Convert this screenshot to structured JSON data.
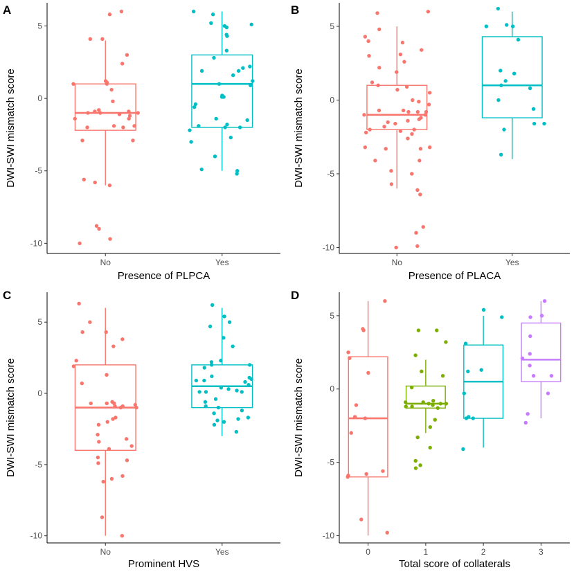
{
  "chart_data": [
    {
      "type": "boxplot",
      "panel": "A",
      "xlabel": "Presence of PLPCA",
      "ylabel": "DWI-SWI mismatch score",
      "ylim": [
        -10.7,
        6.6
      ],
      "yticks": [
        -10,
        -5,
        0,
        5
      ],
      "ytick_labels": [
        "-10",
        "-5",
        "0",
        "5"
      ],
      "groups": [
        {
          "label": "No",
          "color": "#F8766D",
          "box": {
            "whisker_low": -6,
            "q1": -2.2,
            "median": -1,
            "q3": 1,
            "whisker_high": 4
          },
          "points": [
            6,
            5.8,
            4.1,
            4.1,
            3,
            2.4,
            1.2,
            1.1,
            1,
            1,
            0.6,
            -0.2,
            -0.8,
            -0.9,
            -0.9,
            -1,
            -1,
            -1,
            -1.1,
            -1.2,
            -1.4,
            -1.4,
            -1.9,
            -1.9,
            -2,
            -2,
            -2.9,
            -2.9,
            -5.6,
            -5.8,
            -6,
            -8.8,
            -9,
            -9.7,
            -10
          ]
        },
        {
          "label": "Yes",
          "color": "#00BFC4",
          "box": {
            "whisker_low": -5,
            "q1": -2,
            "median": 1,
            "q3": 3,
            "whisker_high": 6
          },
          "points": [
            6,
            5.8,
            5.2,
            5.1,
            5,
            4.9,
            4.4,
            4.3,
            3.3,
            2.8,
            2.2,
            2.1,
            1.9,
            1.9,
            1.6,
            1.2,
            1,
            0.9,
            0.2,
            0.1,
            0.1,
            -0.4,
            -0.6,
            -1.4,
            -1.5,
            -1.8,
            -1.9,
            -2,
            -2,
            -2.2,
            -2.7,
            -3,
            -4,
            -4.9,
            -5,
            -5.2
          ]
        }
      ]
    },
    {
      "type": "boxplot",
      "panel": "B",
      "xlabel": "Presence of PLACA",
      "ylabel": "DWI-SWI mismatch score",
      "ylim": [
        -10.4,
        6.6
      ],
      "yticks": [
        -10,
        -5,
        0,
        5
      ],
      "ytick_labels": [
        "-10",
        "-5",
        "0",
        "5"
      ],
      "groups": [
        {
          "label": "No",
          "color": "#F8766D",
          "box": {
            "whisker_low": -6,
            "q1": -2,
            "median": -1,
            "q3": 1,
            "whisker_high": 5
          },
          "points": [
            6,
            5.9,
            4.8,
            4.3,
            4,
            3.9,
            3.4,
            3.1,
            3,
            2.6,
            2.2,
            1.9,
            1.2,
            1,
            0.9,
            0.7,
            0.5,
            0,
            -0.1,
            -0.3,
            -0.7,
            -0.7,
            -0.8,
            -0.8,
            -0.8,
            -1,
            -1,
            -1.2,
            -1.3,
            -1.4,
            -1.5,
            -1.6,
            -1.8,
            -2,
            -2,
            -2.1,
            -2.2,
            -2.3,
            -2.6,
            -3.2,
            -3.2,
            -3.3,
            -3.3,
            -4.1,
            -4.1,
            -4.8,
            -5,
            -5.7,
            -6.1,
            -6.4,
            -8.6,
            -9,
            -9.9,
            -10
          ]
        },
        {
          "label": "Yes",
          "color": "#00BFC4",
          "box": {
            "whisker_low": -4,
            "q1": -1.2,
            "median": 1,
            "q3": 4.3,
            "whisker_high": 6
          },
          "points": [
            6.2,
            5.1,
            5,
            5,
            4.1,
            2,
            1.8,
            1.3,
            1,
            0.8,
            0,
            -0.6,
            -1.6,
            -1.6,
            -2,
            -3.7
          ]
        }
      ]
    },
    {
      "type": "boxplot",
      "panel": "C",
      "xlabel": "Prominent HVS",
      "ylabel": "DWI-SWI mismatch score",
      "ylim": [
        -10.5,
        7.1
      ],
      "yticks": [
        -10,
        -5,
        0,
        5
      ],
      "ytick_labels": [
        "-10",
        "-5",
        "0",
        "5"
      ],
      "groups": [
        {
          "label": "No",
          "color": "#F8766D",
          "box": {
            "whisker_low": -10,
            "q1": -4,
            "median": -1,
            "q3": 2,
            "whisker_high": 6
          },
          "points": [
            6.3,
            5,
            4.3,
            4.3,
            3.8,
            3.3,
            2.3,
            1.9,
            1.3,
            0.7,
            -0.6,
            -0.7,
            -0.7,
            -0.7,
            -0.8,
            -0.9,
            -0.9,
            -1,
            -1,
            -1.7,
            -1.8,
            -2,
            -2.2,
            -2.9,
            -3.2,
            -3.4,
            -3.7,
            -3.9,
            -4.5,
            -4.7,
            -4.9,
            -5.8,
            -6,
            -6.2,
            -8.7,
            -10
          ]
        },
        {
          "label": "Yes",
          "color": "#00BFC4",
          "box": {
            "whisker_low": -3,
            "q1": -1,
            "median": 0.5,
            "q3": 2,
            "whisker_high": 6
          },
          "points": [
            6.2,
            5.4,
            5,
            4.7,
            3.9,
            3.3,
            2.3,
            2.2,
            2,
            2,
            1.8,
            1.2,
            1.1,
            1,
            0.9,
            0.9,
            0.8,
            0.6,
            0.4,
            0.3,
            0.2,
            0.1,
            0.1,
            0.1,
            -0.4,
            -0.6,
            -0.9,
            -1,
            -1.2,
            -1.4,
            -1.7,
            -1.8,
            -1.9,
            -2,
            -2.2,
            -2.7
          ]
        }
      ]
    },
    {
      "type": "boxplot",
      "panel": "D",
      "xlabel": "Total score of collaterals",
      "ylabel": "DWI-SWI mismatch score",
      "ylim": [
        -10.5,
        6.6
      ],
      "yticks": [
        -10,
        -5,
        0,
        5
      ],
      "ytick_labels": [
        "-10",
        "-5",
        "0",
        "5"
      ],
      "groups": [
        {
          "label": "0",
          "color": "#F8766D",
          "box": {
            "whisker_low": -10,
            "q1": -6,
            "median": -2,
            "q3": 2.2,
            "whisker_high": 6
          },
          "points": [
            6,
            4.1,
            4,
            2.5,
            2.1,
            1.1,
            -1.1,
            -1.9,
            -2,
            -3,
            -5.6,
            -5.8,
            -5.9,
            -6,
            -8.9,
            -9.8
          ]
        },
        {
          "label": "1",
          "color": "#7CAE00",
          "box": {
            "whisker_low": -3,
            "q1": -1.3,
            "median": -1,
            "q3": 0.2,
            "whisker_high": 2
          },
          "points": [
            4,
            4,
            3.2,
            2.3,
            1.2,
            0.9,
            0.1,
            -0.8,
            -0.9,
            -0.9,
            -1,
            -1,
            -1,
            -1.1,
            -1.2,
            -1.2,
            -1.3,
            -2.1,
            -2.6,
            -3.3,
            -4,
            -4.9,
            -5.2,
            -5.4
          ]
        },
        {
          "label": "2",
          "color": "#00BFC4",
          "box": {
            "whisker_low": -4,
            "q1": -2,
            "median": 0.5,
            "q3": 3,
            "whisker_high": 5
          },
          "points": [
            5.4,
            4.9,
            3.1,
            1.3,
            1.2,
            -0.3,
            -1.9,
            -2,
            -2,
            -4.1
          ]
        },
        {
          "label": "3",
          "color": "#C77CFF",
          "box": {
            "whisker_low": -2,
            "q1": 0.5,
            "median": 2,
            "q3": 4.5,
            "whisker_high": 6
          },
          "points": [
            6,
            5,
            4.9,
            3.6,
            2.4,
            2.1,
            1.6,
            0.9,
            0.9,
            -0.3,
            -1.7,
            -2.3
          ]
        }
      ]
    }
  ],
  "panel_labels": [
    "A",
    "B",
    "C",
    "D"
  ]
}
